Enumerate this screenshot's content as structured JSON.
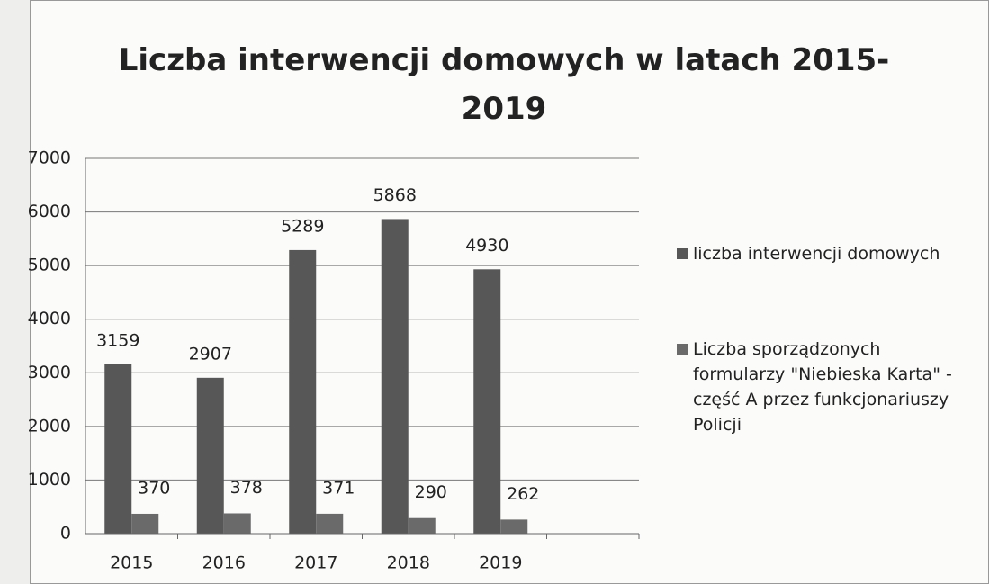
{
  "chart_data": {
    "type": "bar",
    "title": "Liczba interwencji domowych w latach 2015-2019",
    "categories": [
      "2015",
      "2016",
      "2017",
      "2018",
      "2019",
      null
    ],
    "series": [
      {
        "name": "liczba interwencji domowych",
        "color": "#575757",
        "values": [
          3159,
          2907,
          5289,
          5868,
          4930,
          null
        ]
      },
      {
        "name": "Liczba sporządzonych formularzy \"Niebieska Karta\" - część A przez funkcjonariuszy Policji",
        "color": "#6a6a6a",
        "values": [
          370,
          378,
          371,
          290,
          262,
          null
        ]
      }
    ],
    "ylim": [
      0,
      7000
    ],
    "yticks": [
      0,
      1000,
      2000,
      3000,
      4000,
      5000,
      6000,
      7000
    ],
    "grid": true,
    "legend": "right"
  }
}
